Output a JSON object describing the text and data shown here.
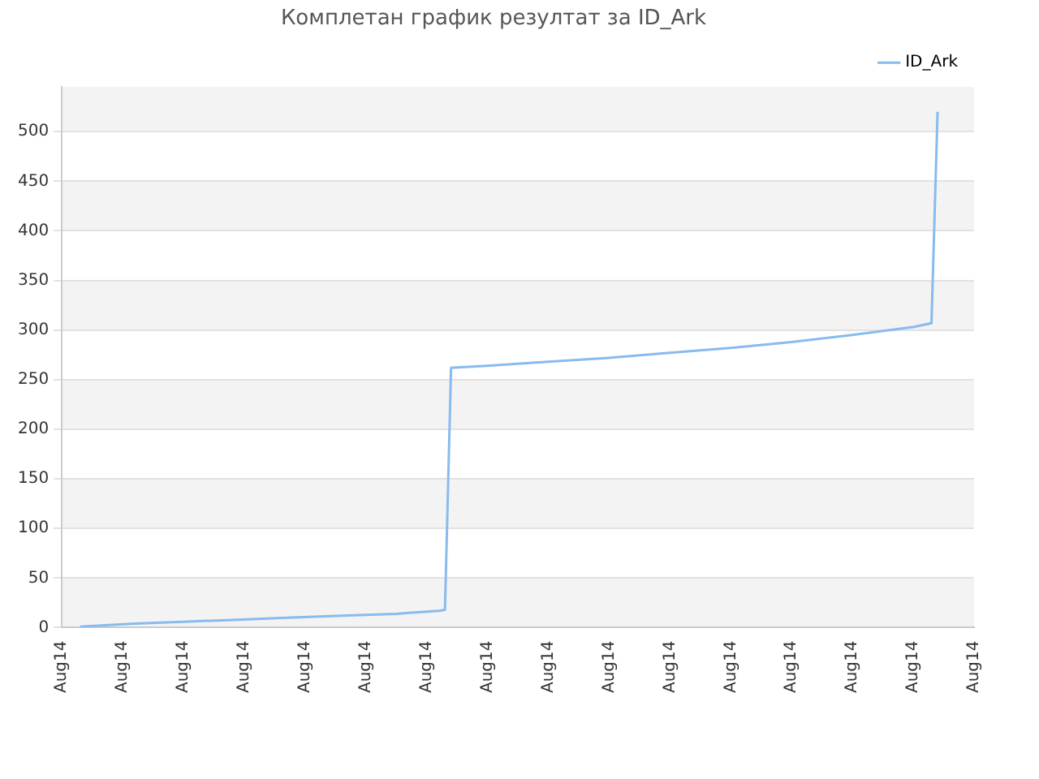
{
  "chart_data": {
    "type": "line",
    "title": "Комплетан график резултат за ID_Ark",
    "categories": [
      "Aug14",
      null,
      null,
      null,
      null,
      null,
      null,
      null,
      null,
      null,
      "Aug14",
      null,
      null,
      null,
      null,
      null,
      null,
      null,
      null,
      null,
      "Aug14",
      null,
      null,
      null,
      null,
      null,
      null,
      null,
      null,
      null,
      "Aug14",
      null,
      null,
      null,
      null,
      null,
      null,
      null,
      null,
      null,
      "Aug14",
      null,
      null,
      null,
      null,
      null,
      null,
      null,
      null,
      null,
      "Aug14",
      null,
      null,
      null,
      null,
      null,
      null,
      null,
      null,
      null,
      "Aug14",
      null,
      null,
      null,
      null,
      null,
      null,
      null,
      null,
      null,
      "Aug14",
      null,
      null,
      null,
      null,
      null,
      null,
      null,
      null,
      null,
      "Aug14",
      null,
      null,
      null,
      null,
      null,
      null,
      null,
      null,
      null,
      "Aug14",
      null,
      null,
      null,
      null,
      null,
      null,
      null,
      null,
      null,
      "Aug14",
      null,
      null,
      null,
      null,
      null,
      null,
      null,
      null,
      null,
      "Aug14",
      null,
      null,
      null,
      null,
      null,
      null,
      null,
      null,
      null,
      "Aug14",
      null,
      null,
      null,
      null,
      null,
      null,
      null,
      null,
      null,
      "Aug14",
      null,
      null,
      null,
      null,
      null,
      null,
      null,
      null,
      null,
      "Aug14",
      null,
      null,
      null,
      null,
      null,
      null,
      null,
      null,
      null,
      "Aug14"
    ],
    "ylim": [
      0,
      545
    ],
    "yticks": [
      0,
      50,
      100,
      150,
      200,
      250,
      300,
      350,
      400,
      450,
      500
    ],
    "grid": "y",
    "legend": "top right",
    "marker": "none",
    "line_style": "solid",
    "series": [
      {
        "name": "ID_Ark",
        "color": "#88bbee",
        "values": [
          null,
          null,
          null,
          1,
          null,
          null,
          2,
          null,
          null,
          null,
          null,
          null,
          4,
          null,
          null,
          null,
          null,
          null,
          null,
          null,
          6,
          null,
          null,
          null,
          null,
          null,
          null,
          null,
          null,
          8,
          null,
          null,
          null,
          null,
          null,
          null,
          null,
          10,
          null,
          null,
          null,
          null,
          null,
          null,
          null,
          null,
          12,
          null,
          null,
          null,
          null,
          null,
          null,
          null,
          null,
          14,
          null,
          null,
          null,
          null,
          null,
          null,
          17,
          18,
          262,
          null,
          null,
          null,
          null,
          null,
          264,
          null,
          null,
          null,
          null,
          null,
          null,
          null,
          null,
          null,
          268,
          null,
          null,
          null,
          null,
          null,
          null,
          null,
          null,
          null,
          272,
          null,
          null,
          null,
          null,
          null,
          null,
          null,
          null,
          null,
          277,
          null,
          null,
          null,
          null,
          null,
          null,
          null,
          null,
          null,
          282,
          null,
          null,
          null,
          null,
          null,
          null,
          null,
          null,
          null,
          288,
          null,
          null,
          null,
          null,
          null,
          null,
          null,
          null,
          null,
          295,
          null,
          null,
          null,
          null,
          null,
          null,
          null,
          null,
          null,
          303,
          null,
          null,
          307,
          520,
          null,
          null,
          null,
          null,
          null,
          null
        ]
      }
    ]
  }
}
